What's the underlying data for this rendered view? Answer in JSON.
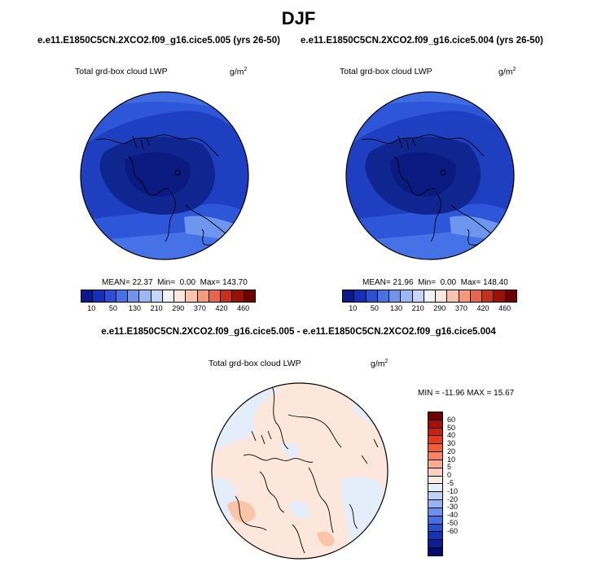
{
  "title": "DJF",
  "case_left": "e.e11.E1850C5CN.2XCO2.f09_g16.cice5.005 (yrs 26-50)",
  "case_right": "e.e11.E1850C5CN.2XCO2.f09_g16.cice5.004 (yrs 26-50)",
  "diff_title": "e.e11.E1850C5CN.2XCO2.f09_g16.cice5.005 - e.e11.E1850C5CN.2XCO2.f09_g16.cice5.004",
  "variable": "Total grd-box cloud LWP",
  "units_base": "g/m",
  "units_exp": "2",
  "panels": [
    {
      "mean_label": "MEAN=",
      "mean": "22.37",
      "min_label": "Min=",
      "min": "0.00",
      "max_label": "Max=",
      "max": "143.70"
    },
    {
      "mean_label": "MEAN=",
      "mean": "21.96",
      "min_label": "Min=",
      "min": "0.00",
      "max_label": "Max=",
      "max": "148.40"
    }
  ],
  "diff_stats": "MIN = -11.96 MAX =  15.67",
  "abs_colorbar": {
    "colors": [
      "#0a1a8c",
      "#1530b8",
      "#2a4fd8",
      "#4672e8",
      "#6f96ef",
      "#9ab8f4",
      "#c5d6f8",
      "#eef2fb",
      "#fde7dc",
      "#f9c4a8",
      "#f59a78",
      "#e8664a",
      "#c8301e",
      "#9c1008",
      "#6e0202"
    ],
    "labels": [
      "10",
      "50",
      "130",
      "210",
      "290",
      "370",
      "420",
      "460"
    ]
  },
  "diff_colorbar": {
    "colors": [
      "#6e0202",
      "#a50f0a",
      "#c8220f",
      "#e63a1c",
      "#f55a30",
      "#f98360",
      "#fbab8e",
      "#fdd0bd",
      "#fcebe0",
      "#e4eefb",
      "#bcd2f7",
      "#93b3f2",
      "#6a91ec",
      "#4670e2",
      "#2750d0",
      "#1534b4",
      "#0d1e94",
      "#050a6e"
    ],
    "labels": [
      "60",
      "50",
      "40",
      "30",
      "20",
      "10",
      "5",
      "0",
      "-5",
      "-10",
      "-20",
      "-30",
      "-40",
      "-50",
      "-60"
    ]
  }
}
